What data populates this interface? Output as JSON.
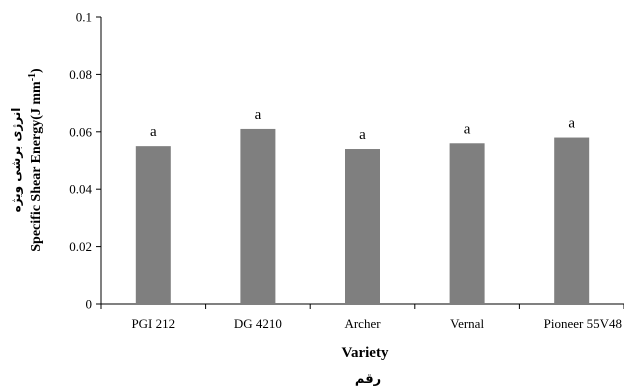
{
  "chart_data": {
    "type": "bar",
    "categories": [
      "PGI 212",
      "DG 4210",
      "Archer",
      "Vernal",
      "Pioneer 55V48"
    ],
    "values": [
      0.055,
      0.061,
      0.054,
      0.056,
      0.058
    ],
    "value_labels": [
      "a",
      "a",
      "a",
      "a",
      "a"
    ],
    "xlabel": "Variety",
    "xlabel_fa": "رقم",
    "ylabel": "Specific Shear Energy(J mm",
    "ylabel_sup": "-1",
    "ylabel_close": ")",
    "ylabel_fa": "انرژی برشی ویژه",
    "ylim": [
      0,
      0.1
    ],
    "yticks": [
      "0",
      "0.02",
      "0.04",
      "0.06",
      "0.08",
      "0.1"
    ],
    "bar_color": "#7f7f7f",
    "grid": false,
    "legend": "none"
  }
}
